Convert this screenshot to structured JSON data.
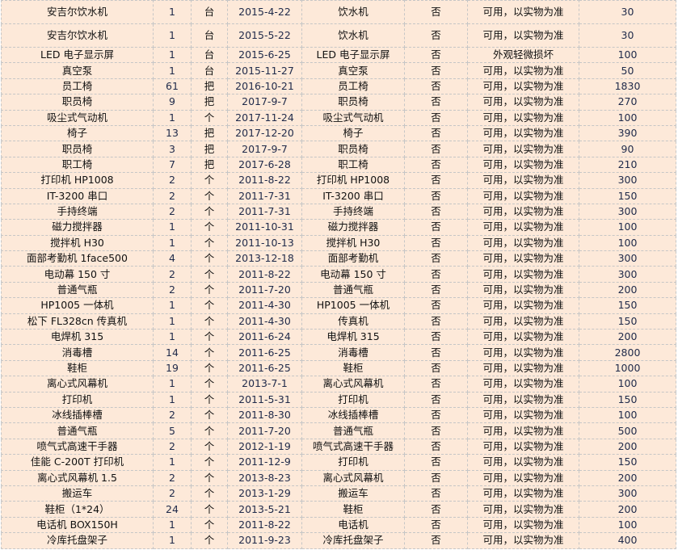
{
  "colors": {
    "cell_background": "#fde9d9",
    "grid": "#c6c6c6"
  },
  "rows": [
    [
      "安吉尔饮水机",
      "1",
      "台",
      "2015-4-22",
      "饮水机",
      "否",
      "可用，以实物为准",
      "30"
    ],
    [
      "安吉尔饮水机",
      "1",
      "台",
      "2015-5-22",
      "饮水机",
      "否",
      "可用，以实物为准",
      "30"
    ],
    [
      "LED 电子显示屏",
      "1",
      "台",
      "2015-6-25",
      "LED 电子显示屏",
      "否",
      "外观轻微损坏",
      "100"
    ],
    [
      "真空泵",
      "1",
      "台",
      "2015-11-27",
      "真空泵",
      "否",
      "可用，以实物为准",
      "50"
    ],
    [
      "员工椅",
      "61",
      "把",
      "2016-10-21",
      "员工椅",
      "否",
      "可用，以实物为准",
      "1830"
    ],
    [
      "职员椅",
      "9",
      "把",
      "2017-9-7",
      "职员椅",
      "否",
      "可用，以实物为准",
      "270"
    ],
    [
      "吸尘式气动机",
      "1",
      "个",
      "2017-11-24",
      "吸尘式气动机",
      "否",
      "可用，以实物为准",
      "100"
    ],
    [
      "椅子",
      "13",
      "把",
      "2017-12-20",
      "椅子",
      "否",
      "可用，以实物为准",
      "390"
    ],
    [
      "职员椅",
      "3",
      "把",
      "2017-9-7",
      "职员椅",
      "否",
      "可用，以实物为准",
      "90"
    ],
    [
      "职工椅",
      "7",
      "把",
      "2017-6-28",
      "职工椅",
      "否",
      "可用，以实物为准",
      "210"
    ],
    [
      "打印机 HP1008",
      "2",
      "个",
      "2011-8-22",
      "打印机 HP1008",
      "否",
      "可用，以实物为准",
      "300"
    ],
    [
      "IT-3200 串口",
      "2",
      "个",
      "2011-7-31",
      "IT-3200 串口",
      "否",
      "可用，以实物为准",
      "150"
    ],
    [
      "手持终端",
      "2",
      "个",
      "2011-7-31",
      "手持终端",
      "否",
      "可用，以实物为准",
      "300"
    ],
    [
      "磁力搅拌器",
      "1",
      "个",
      "2011-10-31",
      "磁力搅拌器",
      "否",
      "可用，以实物为准",
      "100"
    ],
    [
      "搅拌机 H30",
      "1",
      "个",
      "2011-10-13",
      "搅拌机 H30",
      "否",
      "可用，以实物为准",
      "100"
    ],
    [
      "面部考勤机 1face500",
      "4",
      "个",
      "2013-12-18",
      "面部考勤机",
      "否",
      "可用，以实物为准",
      "300"
    ],
    [
      "电动幕 150 寸",
      "2",
      "个",
      "2011-8-22",
      "电动幕 150 寸",
      "否",
      "可用，以实物为准",
      "300"
    ],
    [
      "普通气瓶",
      "2",
      "个",
      "2011-7-20",
      "普通气瓶",
      "否",
      "可用，以实物为准",
      "200"
    ],
    [
      "HP1005 一体机",
      "1",
      "个",
      "2011-4-30",
      "HP1005 一体机",
      "否",
      "可用，以实物为准",
      "150"
    ],
    [
      "松下 FL328cn 传真机",
      "1",
      "个",
      "2011-4-30",
      "传真机",
      "否",
      "可用，以实物为准",
      "150"
    ],
    [
      "电焊机 315",
      "1",
      "个",
      "2011-6-24",
      "电焊机 315",
      "否",
      "可用，以实物为准",
      "200"
    ],
    [
      "消毒槽",
      "14",
      "个",
      "2011-6-25",
      "消毒槽",
      "否",
      "可用，以实物为准",
      "2800"
    ],
    [
      "鞋柜",
      "19",
      "个",
      "2011-6-25",
      "鞋柜",
      "否",
      "可用，以实物为准",
      "1000"
    ],
    [
      "离心式风幕机",
      "1",
      "个",
      "2013-7-1",
      "离心式风幕机",
      "否",
      "可用，以实物为准",
      "100"
    ],
    [
      "打印机",
      "1",
      "个",
      "2011-5-31",
      "打印机",
      "否",
      "可用，以实物为准",
      "150"
    ],
    [
      "冰线插棒槽",
      "2",
      "个",
      "2011-8-30",
      "冰线插棒槽",
      "否",
      "可用，以实物为准",
      "100"
    ],
    [
      "普通气瓶",
      "5",
      "个",
      "2011-7-20",
      "普通气瓶",
      "否",
      "可用，以实物为准",
      "500"
    ],
    [
      "喷气式高速干手器",
      "2",
      "个",
      "2012-1-19",
      "喷气式高速干手器",
      "否",
      "可用，以实物为准",
      "200"
    ],
    [
      "佳能 C-200T 打印机",
      "1",
      "个",
      "2011-12-9",
      "打印机",
      "否",
      "可用，以实物为准",
      "150"
    ],
    [
      "离心式风幕机 1.5",
      "2",
      "个",
      "2013-8-23",
      "离心式风幕机",
      "否",
      "可用，以实物为准",
      "200"
    ],
    [
      "搬运车",
      "2",
      "个",
      "2013-1-29",
      "搬运车",
      "否",
      "可用，以实物为准",
      "300"
    ],
    [
      "鞋柜（1*24）",
      "24",
      "个",
      "2013-5-21",
      "鞋柜",
      "否",
      "可用，以实物为准",
      "200"
    ],
    [
      "电话机 BOX150H",
      "1",
      "个",
      "2011-8-22",
      "电话机",
      "否",
      "可用，以实物为准",
      "100"
    ],
    [
      "冷库托盘架子",
      "1",
      "个",
      "2011-9-23",
      "冷库托盘架子",
      "否",
      "可用，以实物为准",
      "400"
    ]
  ]
}
